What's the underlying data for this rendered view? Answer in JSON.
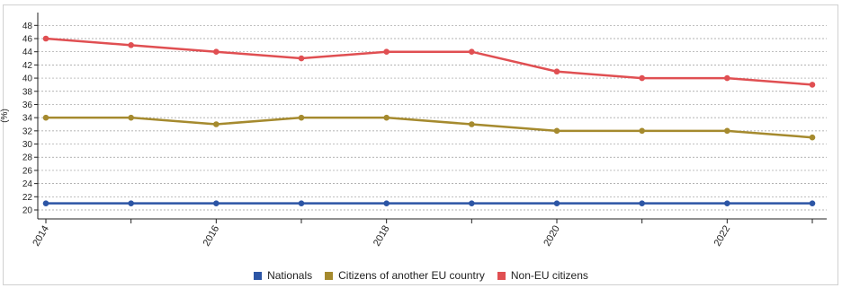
{
  "chart_data": {
    "type": "line",
    "x": [
      2014,
      2015,
      2016,
      2017,
      2018,
      2019,
      2020,
      2021,
      2022,
      2023
    ],
    "xticks": [
      "2014",
      "2016",
      "2018",
      "2020",
      "2022"
    ],
    "ylim": [
      19,
      49
    ],
    "yticks": [
      20,
      22,
      24,
      26,
      28,
      30,
      32,
      34,
      36,
      38,
      40,
      42,
      44,
      46,
      48
    ],
    "ylabel": "(%)",
    "grid": true,
    "legend_position": "bottom",
    "series": [
      {
        "name": "Nationals",
        "color": "#2c55a5",
        "values": [
          21,
          21,
          21,
          21,
          21,
          21,
          21,
          21,
          21,
          21
        ]
      },
      {
        "name": "Citizens of another EU country",
        "color": "#a58a2e",
        "values": [
          34,
          34,
          33,
          34,
          34,
          33,
          32,
          32,
          32,
          31
        ]
      },
      {
        "name": "Non-EU citizens",
        "color": "#e04f52",
        "values": [
          46,
          45,
          44,
          43,
          44,
          44,
          41,
          40,
          40,
          39
        ]
      }
    ]
  }
}
